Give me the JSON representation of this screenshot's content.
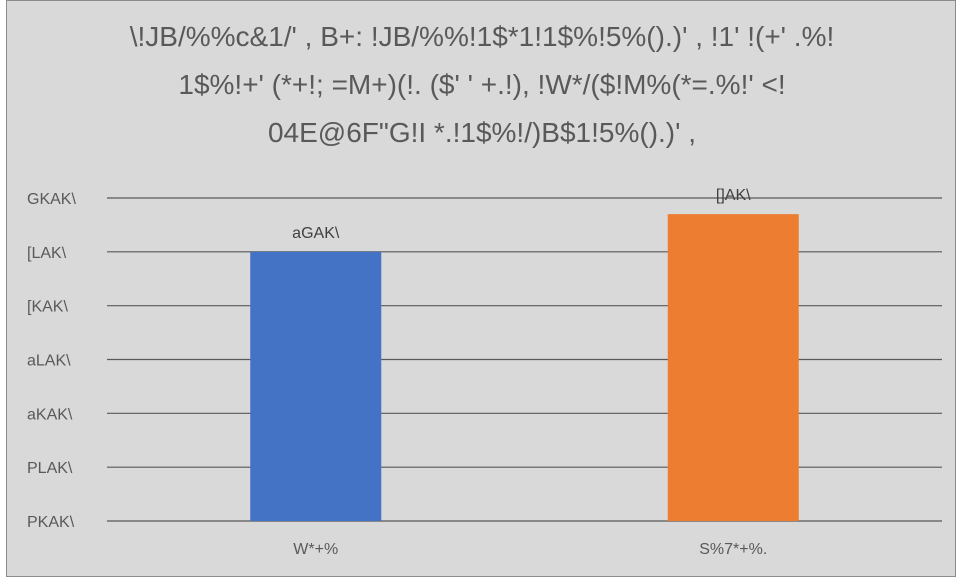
{
  "chart_data": {
    "type": "bar",
    "title_lines": [
      "\\!JB/%%c&1/' , B+: !JB/%%!1$*1!1$%!5%().)' , !1' !(+' .%!",
      "1$%!+' (*+!; =M+)(!. ($' ' +.!), !W*/($!M%(*=.%!' <!",
      "04E@6F\"G!I *.!1$%!/)B$1!5%().)' ,"
    ],
    "categories": [
      "W*+%",
      "S%7*+%."
    ],
    "values": [
      150,
      171
    ],
    "data_labels": [
      "aGAK\\",
      "[]AK\\"
    ],
    "bar_colors": [
      "#4472c4",
      "#ed7d31"
    ],
    "yaxis_ticks": [
      {
        "value": 0,
        "label": "PKAK\\"
      },
      {
        "value": 30,
        "label": "PLAK\\"
      },
      {
        "value": 60,
        "label": "aKAK\\"
      },
      {
        "value": 90,
        "label": "aLAK\\"
      },
      {
        "value": 120,
        "label": "[KAK\\"
      },
      {
        "value": 150,
        "label": "[LAK\\"
      },
      {
        "value": 180,
        "label": "GKAK\\"
      }
    ],
    "ylim": [
      0,
      180
    ],
    "grid": true,
    "legend": "none",
    "background_color": "#d9d9d9",
    "gridline_color": "#595959"
  }
}
